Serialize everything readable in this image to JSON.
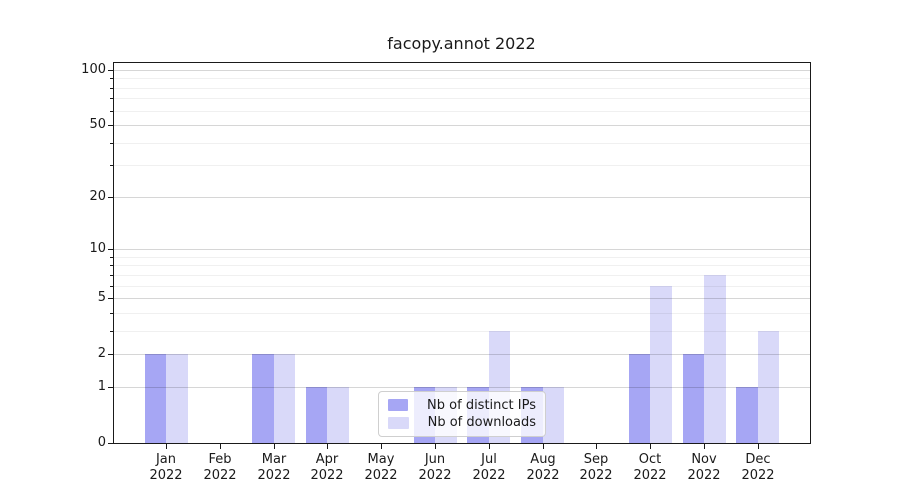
{
  "chart_data": {
    "type": "bar",
    "title": "facopy.annot 2022",
    "categories": [
      {
        "month": "Jan",
        "year": "2022"
      },
      {
        "month": "Feb",
        "year": "2022"
      },
      {
        "month": "Mar",
        "year": "2022"
      },
      {
        "month": "Apr",
        "year": "2022"
      },
      {
        "month": "May",
        "year": "2022"
      },
      {
        "month": "Jun",
        "year": "2022"
      },
      {
        "month": "Jul",
        "year": "2022"
      },
      {
        "month": "Aug",
        "year": "2022"
      },
      {
        "month": "Sep",
        "year": "2022"
      },
      {
        "month": "Oct",
        "year": "2022"
      },
      {
        "month": "Nov",
        "year": "2022"
      },
      {
        "month": "Dec",
        "year": "2022"
      }
    ],
    "series": [
      {
        "name": "Nb of distinct IPs",
        "slug": "distinct-ips",
        "color": "#a6a6f4",
        "values": [
          2,
          0,
          2,
          1,
          0,
          1,
          1,
          1,
          0,
          2,
          2,
          1
        ]
      },
      {
        "name": "Nb of downloads",
        "slug": "downloads",
        "color": "#d9d9f9",
        "values": [
          2,
          0,
          2,
          1,
          0,
          1,
          3,
          1,
          0,
          6,
          7,
          3
        ]
      }
    ],
    "y_axis": {
      "scale": "log1p",
      "ticks": [
        0,
        1,
        2,
        5,
        10,
        20,
        50,
        100
      ],
      "minor_ticks": [
        3,
        4,
        6,
        7,
        8,
        9,
        30,
        40,
        60,
        70,
        80,
        90
      ],
      "range_top_value": 110
    },
    "legend": {
      "position": "lower center"
    },
    "grid": {
      "major": true,
      "minor": true
    },
    "colors": {
      "major_grid": "rgba(0,0,0,0.16)",
      "minor_grid": "rgba(0,0,0,0.06)",
      "spine": "#1a1a1a",
      "text": "#1a1a1a",
      "legend_border": "#cfcfcf",
      "legend_background": "rgba(255,255,255,0.8)"
    }
  }
}
